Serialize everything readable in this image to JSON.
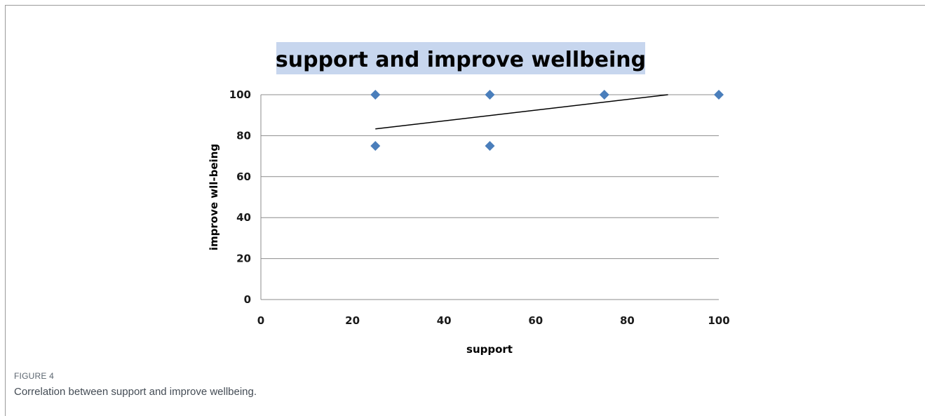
{
  "figure": {
    "label": "FIGURE 4",
    "caption": "Correlation between support and improve wellbeing."
  },
  "chart_data": {
    "type": "scatter",
    "title": "support and improve wellbeing",
    "xlabel": "support",
    "ylabel": "improve wll-being",
    "xlim": [
      0,
      100
    ],
    "ylim": [
      0,
      100
    ],
    "xticks": [
      "0",
      "20",
      "40",
      "60",
      "80",
      "100"
    ],
    "yticks": [
      "0",
      "20",
      "40",
      "60",
      "80",
      "100"
    ],
    "grid": "horizontal",
    "marker_color": "#4a7ebb",
    "title_background": "#c7d6ee",
    "series": [
      {
        "points": [
          {
            "x": 25,
            "y": 100
          },
          {
            "x": 25,
            "y": 75
          },
          {
            "x": 50,
            "y": 100
          },
          {
            "x": 50,
            "y": 75
          },
          {
            "x": 75,
            "y": 100
          },
          {
            "x": 100,
            "y": 100
          }
        ]
      }
    ],
    "trendline": {
      "type": "linear",
      "from": {
        "x": 25,
        "y": 83.3
      },
      "to": {
        "x": 88.9,
        "y": 100
      }
    }
  }
}
